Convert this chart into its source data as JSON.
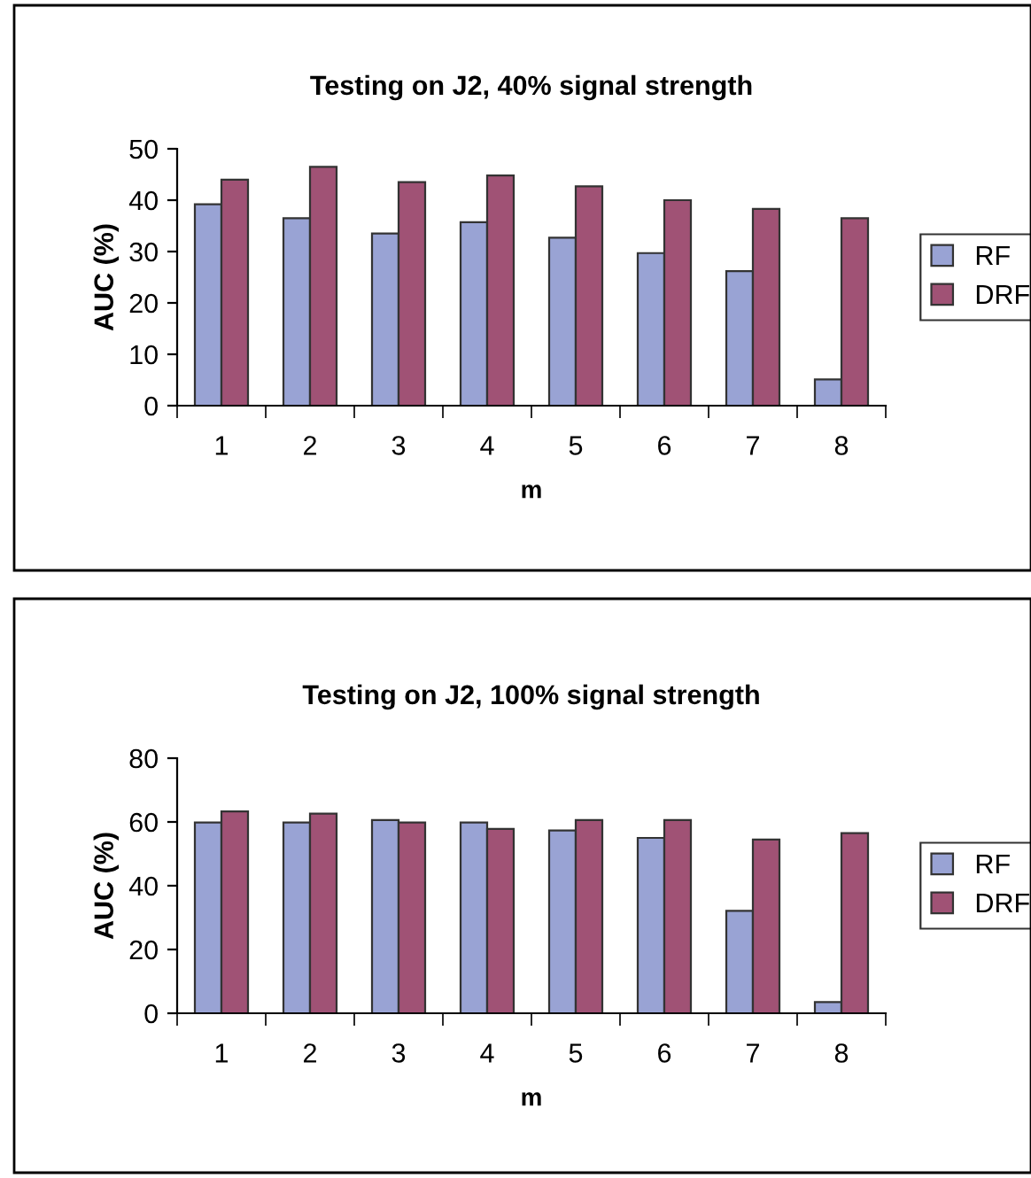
{
  "chart_data": [
    {
      "type": "bar",
      "title": "Testing on J2, 40% signal strength",
      "xlabel": "m",
      "ylabel": "AUC (%)",
      "categories": [
        "1",
        "2",
        "3",
        "4",
        "5",
        "6",
        "7",
        "8"
      ],
      "series": [
        {
          "name": "RF",
          "color": "#99a3d4",
          "values": [
            39.2,
            36.5,
            33.5,
            35.7,
            32.7,
            29.7,
            26.2,
            5.1
          ]
        },
        {
          "name": "DRF",
          "color": "#a05275",
          "values": [
            44,
            46.5,
            43.5,
            44.8,
            42.7,
            40,
            38.3,
            36.5
          ]
        }
      ],
      "ylim": [
        0,
        50
      ],
      "yticks": [
        0,
        10,
        20,
        30,
        40,
        50
      ],
      "grid": false,
      "legend": "right"
    },
    {
      "type": "bar",
      "title": "Testing on J2, 100% signal strength",
      "xlabel": "m",
      "ylabel": "AUC (%)",
      "categories": [
        "1",
        "2",
        "3",
        "4",
        "5",
        "6",
        "7",
        "8"
      ],
      "series": [
        {
          "name": "RF",
          "color": "#99a3d4",
          "values": [
            59.8,
            59.8,
            60.6,
            59.8,
            57.3,
            55,
            32.1,
            3.5
          ]
        },
        {
          "name": "DRF",
          "color": "#a05275",
          "values": [
            63.3,
            62.6,
            59.8,
            57.8,
            60.6,
            60.6,
            54.5,
            56.5
          ]
        }
      ],
      "ylim": [
        0,
        80
      ],
      "yticks": [
        0,
        20,
        40,
        60,
        80
      ],
      "grid": false,
      "legend": "right"
    }
  ]
}
